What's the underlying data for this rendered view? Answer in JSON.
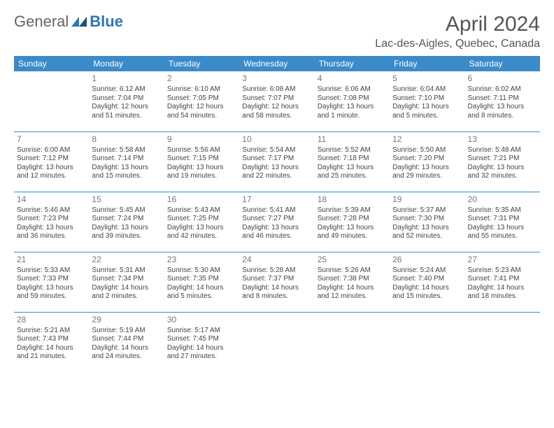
{
  "logo": {
    "text1": "General",
    "text2": "Blue"
  },
  "title": "April 2024",
  "location": "Lac-des-Aigles, Quebec, Canada",
  "colors": {
    "header_bg": "#3b8bc9",
    "header_text": "#ffffff",
    "border": "#3b8bc9",
    "text": "#444444",
    "daynum": "#777777",
    "title": "#555555"
  },
  "weekdays": [
    "Sunday",
    "Monday",
    "Tuesday",
    "Wednesday",
    "Thursday",
    "Friday",
    "Saturday"
  ],
  "first_weekday_offset": 1,
  "days": [
    {
      "n": 1,
      "sunrise": "6:12 AM",
      "sunset": "7:04 PM",
      "daylight": "12 hours and 51 minutes."
    },
    {
      "n": 2,
      "sunrise": "6:10 AM",
      "sunset": "7:05 PM",
      "daylight": "12 hours and 54 minutes."
    },
    {
      "n": 3,
      "sunrise": "6:08 AM",
      "sunset": "7:07 PM",
      "daylight": "12 hours and 58 minutes."
    },
    {
      "n": 4,
      "sunrise": "6:06 AM",
      "sunset": "7:08 PM",
      "daylight": "13 hours and 1 minute."
    },
    {
      "n": 5,
      "sunrise": "6:04 AM",
      "sunset": "7:10 PM",
      "daylight": "13 hours and 5 minutes."
    },
    {
      "n": 6,
      "sunrise": "6:02 AM",
      "sunset": "7:11 PM",
      "daylight": "13 hours and 8 minutes."
    },
    {
      "n": 7,
      "sunrise": "6:00 AM",
      "sunset": "7:12 PM",
      "daylight": "13 hours and 12 minutes."
    },
    {
      "n": 8,
      "sunrise": "5:58 AM",
      "sunset": "7:14 PM",
      "daylight": "13 hours and 15 minutes."
    },
    {
      "n": 9,
      "sunrise": "5:56 AM",
      "sunset": "7:15 PM",
      "daylight": "13 hours and 19 minutes."
    },
    {
      "n": 10,
      "sunrise": "5:54 AM",
      "sunset": "7:17 PM",
      "daylight": "13 hours and 22 minutes."
    },
    {
      "n": 11,
      "sunrise": "5:52 AM",
      "sunset": "7:18 PM",
      "daylight": "13 hours and 25 minutes."
    },
    {
      "n": 12,
      "sunrise": "5:50 AM",
      "sunset": "7:20 PM",
      "daylight": "13 hours and 29 minutes."
    },
    {
      "n": 13,
      "sunrise": "5:48 AM",
      "sunset": "7:21 PM",
      "daylight": "13 hours and 32 minutes."
    },
    {
      "n": 14,
      "sunrise": "5:46 AM",
      "sunset": "7:23 PM",
      "daylight": "13 hours and 36 minutes."
    },
    {
      "n": 15,
      "sunrise": "5:45 AM",
      "sunset": "7:24 PM",
      "daylight": "13 hours and 39 minutes."
    },
    {
      "n": 16,
      "sunrise": "5:43 AM",
      "sunset": "7:25 PM",
      "daylight": "13 hours and 42 minutes."
    },
    {
      "n": 17,
      "sunrise": "5:41 AM",
      "sunset": "7:27 PM",
      "daylight": "13 hours and 46 minutes."
    },
    {
      "n": 18,
      "sunrise": "5:39 AM",
      "sunset": "7:28 PM",
      "daylight": "13 hours and 49 minutes."
    },
    {
      "n": 19,
      "sunrise": "5:37 AM",
      "sunset": "7:30 PM",
      "daylight": "13 hours and 52 minutes."
    },
    {
      "n": 20,
      "sunrise": "5:35 AM",
      "sunset": "7:31 PM",
      "daylight": "13 hours and 55 minutes."
    },
    {
      "n": 21,
      "sunrise": "5:33 AM",
      "sunset": "7:33 PM",
      "daylight": "13 hours and 59 minutes."
    },
    {
      "n": 22,
      "sunrise": "5:31 AM",
      "sunset": "7:34 PM",
      "daylight": "14 hours and 2 minutes."
    },
    {
      "n": 23,
      "sunrise": "5:30 AM",
      "sunset": "7:35 PM",
      "daylight": "14 hours and 5 minutes."
    },
    {
      "n": 24,
      "sunrise": "5:28 AM",
      "sunset": "7:37 PM",
      "daylight": "14 hours and 8 minutes."
    },
    {
      "n": 25,
      "sunrise": "5:26 AM",
      "sunset": "7:38 PM",
      "daylight": "14 hours and 12 minutes."
    },
    {
      "n": 26,
      "sunrise": "5:24 AM",
      "sunset": "7:40 PM",
      "daylight": "14 hours and 15 minutes."
    },
    {
      "n": 27,
      "sunrise": "5:23 AM",
      "sunset": "7:41 PM",
      "daylight": "14 hours and 18 minutes."
    },
    {
      "n": 28,
      "sunrise": "5:21 AM",
      "sunset": "7:43 PM",
      "daylight": "14 hours and 21 minutes."
    },
    {
      "n": 29,
      "sunrise": "5:19 AM",
      "sunset": "7:44 PM",
      "daylight": "14 hours and 24 minutes."
    },
    {
      "n": 30,
      "sunrise": "5:17 AM",
      "sunset": "7:45 PM",
      "daylight": "14 hours and 27 minutes."
    }
  ],
  "labels": {
    "sunrise": "Sunrise:",
    "sunset": "Sunset:",
    "daylight": "Daylight:"
  }
}
